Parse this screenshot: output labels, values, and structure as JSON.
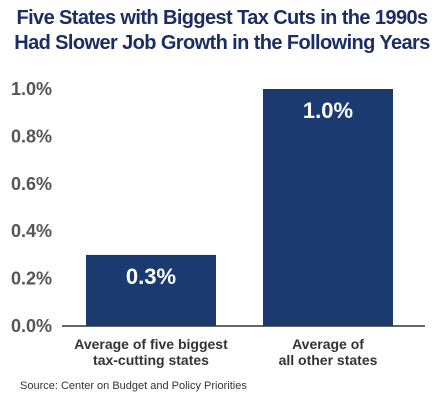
{
  "chart_data": {
    "type": "bar",
    "title_lines": [
      "Five States with Biggest Tax Cuts in the 1990s",
      "Had Slower Job Growth in the Following Years"
    ],
    "categories": [
      [
        "Average of five biggest",
        "tax-cutting states"
      ],
      [
        "Average of",
        "all other states"
      ]
    ],
    "values": [
      0.3,
      1.0
    ],
    "data_labels": [
      "0.3%",
      "1.0%"
    ],
    "y_ticks": [
      "0.0%",
      "0.2%",
      "0.4%",
      "0.6%",
      "0.8%",
      "1.0%"
    ],
    "y_tick_values": [
      0,
      0.2,
      0.4,
      0.6,
      0.8,
      1.0
    ],
    "ylim": [
      0,
      1.0
    ],
    "grid": false,
    "bar_color": "#1b3a70",
    "xlabel": "",
    "ylabel": ""
  },
  "source": "Source: Center on Budget and Policy Priorities",
  "colors": {
    "title": "#1b2e63",
    "bar": "#1b3a70",
    "axis_text": "#555555"
  }
}
